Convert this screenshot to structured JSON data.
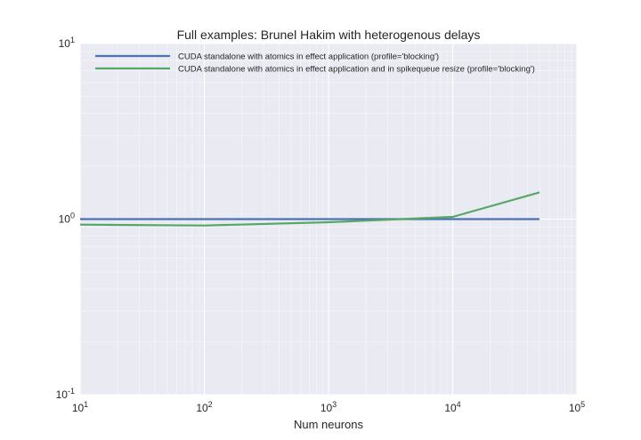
{
  "chart_data": {
    "type": "line",
    "title": "Full examples: Brunel Hakim with heterogenous delays",
    "xlabel": "Num neurons",
    "ylabel": "",
    "x_scale": "log",
    "y_scale": "log",
    "xlim": [
      10,
      100000
    ],
    "ylim": [
      0.1,
      10
    ],
    "grid": true,
    "legend_position": "top-left",
    "x_ticks": [
      {
        "base": "10",
        "exp": "1",
        "value": 10
      },
      {
        "base": "10",
        "exp": "2",
        "value": 100
      },
      {
        "base": "10",
        "exp": "3",
        "value": 1000
      },
      {
        "base": "10",
        "exp": "4",
        "value": 10000
      },
      {
        "base": "10",
        "exp": "5",
        "value": 100000
      }
    ],
    "y_ticks": [
      {
        "base": "10",
        "exp": "-1",
        "value": 0.1
      },
      {
        "base": "10",
        "exp": "0",
        "value": 1
      },
      {
        "base": "10",
        "exp": "1",
        "value": 10
      }
    ],
    "series": [
      {
        "name": "CUDA standalone with atomics in effect application (profile='blocking')",
        "color": "#4c72b0",
        "x": [
          10,
          100,
          1000,
          10000,
          50000
        ],
        "y": [
          1.0,
          1.0,
          1.0,
          1.0,
          1.0
        ]
      },
      {
        "name": "CUDA standalone with atomics in effect application and in spikequeue resize (profile='blocking')",
        "color": "#55a868",
        "x": [
          10,
          100,
          1000,
          10000,
          50000
        ],
        "y": [
          0.93,
          0.92,
          0.96,
          1.03,
          1.42
        ]
      }
    ]
  },
  "colors": {
    "plot_background": "#eaeaf2",
    "grid_major": "#ffffff",
    "grid_minor": "#f5f5fa"
  }
}
